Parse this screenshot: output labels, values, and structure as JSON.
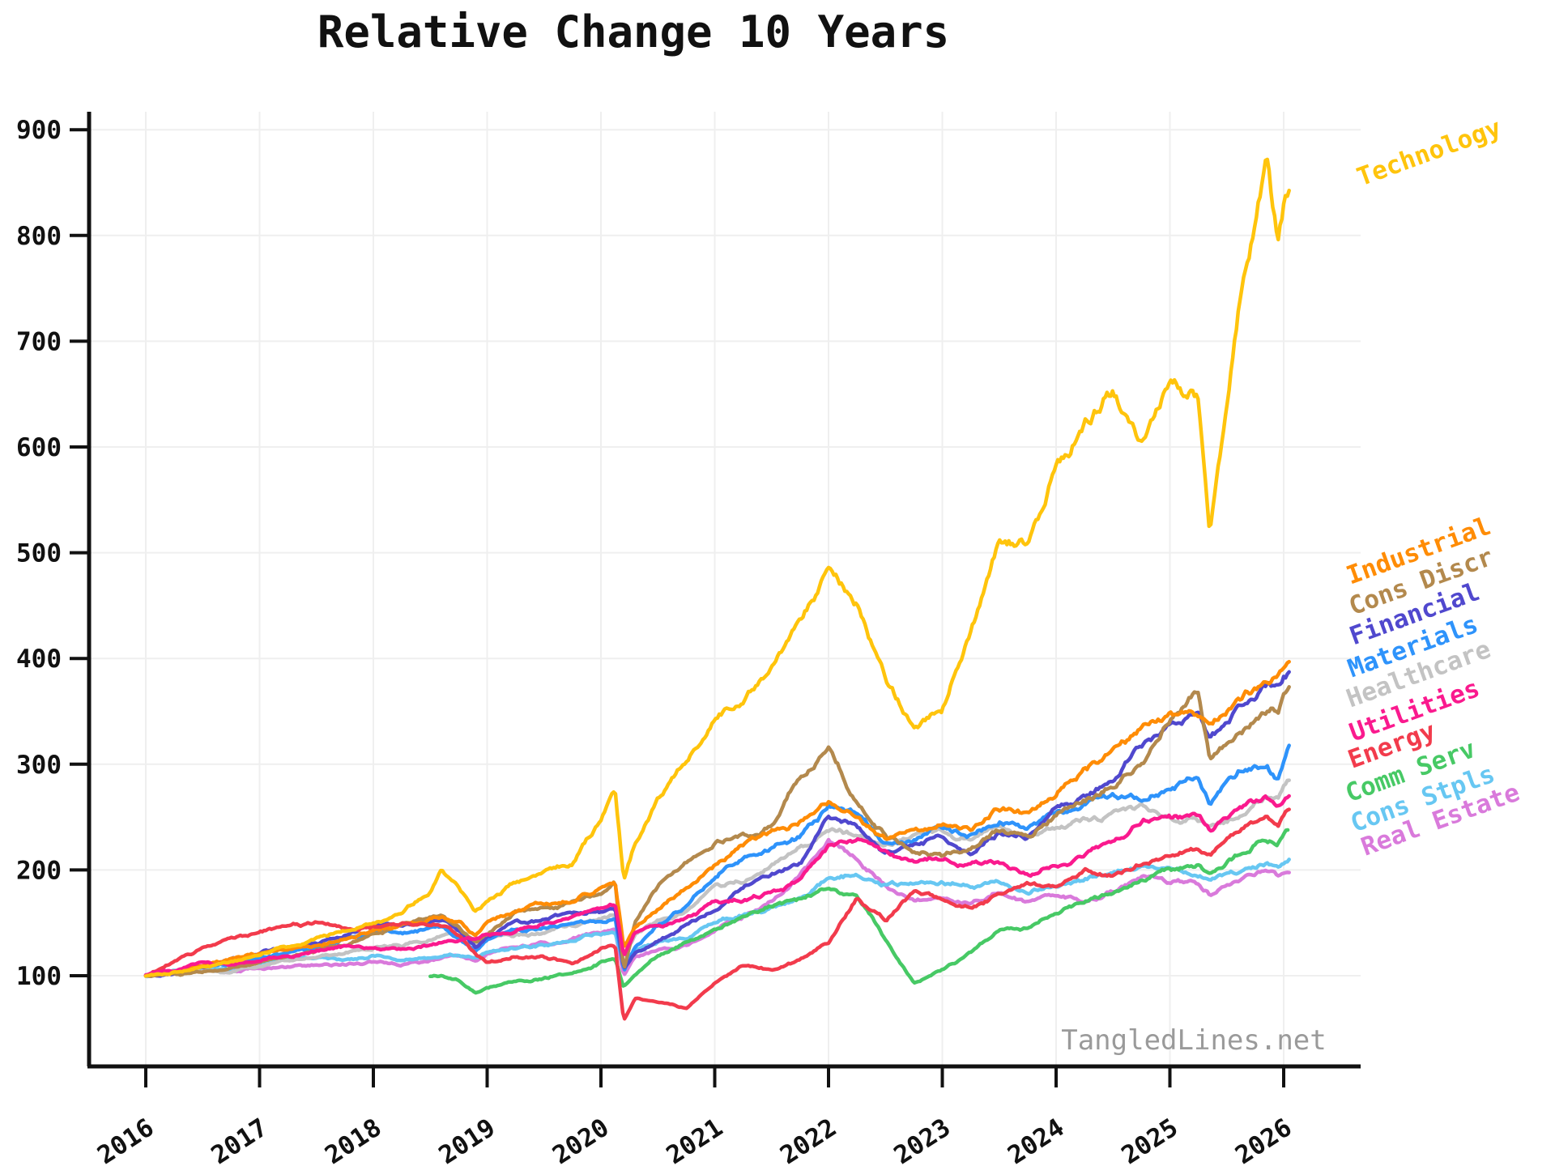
{
  "title": "Relative Change 10 Years",
  "watermark": "TangledLines.net",
  "chart_data": {
    "type": "line",
    "title": "Relative Change 10 Years",
    "xlabel": "",
    "ylabel": "",
    "grid": true,
    "legend_position": "right-margin-rotated-labels",
    "x_tick_labels": [
      "2016",
      "2017",
      "2018",
      "2019",
      "2020",
      "2021",
      "2022",
      "2023",
      "2024",
      "2025",
      "2026"
    ],
    "y_tick_labels": [
      "100",
      "200",
      "300",
      "400",
      "500",
      "600",
      "700",
      "800",
      "900"
    ],
    "xlim": [
      2015.5,
      2026.68
    ],
    "ylim": [
      40,
      915
    ],
    "x": [
      2016.0,
      2016.25,
      2016.5,
      2016.75,
      2017.0,
      2017.25,
      2017.5,
      2017.75,
      2018.0,
      2018.25,
      2018.5,
      2018.6,
      2018.75,
      2018.9,
      2019.0,
      2019.25,
      2019.5,
      2019.75,
      2020.0,
      2020.125,
      2020.2,
      2020.3,
      2020.5,
      2020.75,
      2021.0,
      2021.25,
      2021.5,
      2021.75,
      2022.0,
      2022.25,
      2022.5,
      2022.75,
      2023.0,
      2023.25,
      2023.5,
      2023.75,
      2024.0,
      2024.25,
      2024.5,
      2024.75,
      2025.0,
      2025.25,
      2025.35,
      2025.6,
      2025.85,
      2025.95,
      2026.0,
      2026.05
    ],
    "series": [
      {
        "name": "Technology",
        "color": "#FFC40C",
        "values": [
          100,
          104,
          109,
          113,
          120,
          127,
          134,
          142,
          150,
          160,
          178,
          203,
          185,
          163,
          172,
          192,
          200,
          210,
          252,
          280,
          195,
          230,
          268,
          305,
          340,
          358,
          392,
          432,
          478,
          450,
          375,
          335,
          350,
          430,
          510,
          505,
          570,
          620,
          655,
          605,
          675,
          655,
          515,
          720,
          860,
          790,
          820,
          830
        ]
      },
      {
        "name": "Industrial",
        "color": "#FF8C05",
        "values": [
          100,
          104,
          110,
          115,
          120,
          125,
          130,
          137,
          145,
          150,
          155,
          157,
          150,
          138,
          150,
          162,
          168,
          172,
          185,
          192,
          128,
          148,
          165,
          185,
          205,
          225,
          235,
          245,
          262,
          250,
          230,
          240,
          242,
          238,
          260,
          252,
          272,
          290,
          310,
          330,
          345,
          340,
          330,
          360,
          380,
          388,
          396,
          403
        ]
      },
      {
        "name": "Cons Discr",
        "color": "#B3894D",
        "values": [
          100,
          102,
          104,
          107,
          112,
          118,
          124,
          131,
          140,
          147,
          155,
          158,
          150,
          132,
          140,
          160,
          165,
          168,
          178,
          190,
          106,
          150,
          185,
          205,
          225,
          232,
          242,
          290,
          315,
          260,
          230,
          215,
          212,
          216,
          235,
          230,
          252,
          262,
          278,
          300,
          340,
          365,
          300,
          330,
          355,
          355,
          370,
          376
        ]
      },
      {
        "name": "Financial",
        "color": "#5048CE",
        "values": [
          100,
          103,
          109,
          116,
          122,
          125,
          130,
          138,
          148,
          146,
          148,
          150,
          142,
          126,
          138,
          148,
          152,
          158,
          162,
          165,
          105,
          122,
          132,
          148,
          162,
          185,
          195,
          205,
          255,
          240,
          215,
          225,
          230,
          215,
          235,
          230,
          255,
          270,
          285,
          315,
          330,
          345,
          320,
          350,
          370,
          365,
          375,
          381
        ]
      },
      {
        "name": "Materials",
        "color": "#2E93FB",
        "values": [
          100,
          104,
          110,
          114,
          120,
          124,
          128,
          134,
          142,
          140,
          144,
          146,
          136,
          122,
          134,
          142,
          144,
          148,
          152,
          155,
          105,
          128,
          148,
          165,
          195,
          215,
          225,
          230,
          258,
          250,
          225,
          230,
          240,
          232,
          245,
          238,
          252,
          262,
          270,
          268,
          278,
          285,
          262,
          288,
          295,
          280,
          300,
          314
        ]
      },
      {
        "name": "Healthcare",
        "color": "#C3C3C3",
        "values": [
          100,
          101,
          104,
          102,
          108,
          114,
          118,
          122,
          126,
          128,
          134,
          138,
          140,
          130,
          136,
          138,
          140,
          146,
          152,
          155,
          118,
          138,
          150,
          158,
          180,
          190,
          205,
          220,
          240,
          235,
          225,
          235,
          238,
          230,
          240,
          232,
          245,
          250,
          255,
          262,
          255,
          248,
          238,
          252,
          268,
          262,
          272,
          281
        ]
      },
      {
        "name": "Utilities",
        "color": "#FA1A8E",
        "values": [
          100,
          106,
          112,
          108,
          114,
          118,
          124,
          128,
          126,
          124,
          128,
          130,
          132,
          134,
          140,
          144,
          150,
          156,
          165,
          168,
          118,
          140,
          148,
          155,
          170,
          172,
          180,
          190,
          222,
          228,
          215,
          205,
          210,
          205,
          208,
          195,
          205,
          215,
          228,
          245,
          248,
          252,
          240,
          258,
          268,
          258,
          262,
          267
        ]
      },
      {
        "name": "Energy",
        "color": "#F23B4C",
        "values": [
          100,
          114,
          126,
          134,
          140,
          148,
          150,
          146,
          148,
          152,
          150,
          148,
          142,
          125,
          112,
          120,
          118,
          114,
          128,
          130,
          58,
          80,
          75,
          70,
          95,
          110,
          105,
          115,
          130,
          172,
          152,
          178,
          172,
          165,
          178,
          190,
          185,
          200,
          195,
          205,
          210,
          222,
          215,
          235,
          248,
          240,
          250,
          256
        ]
      },
      {
        "name": "Comm Serv",
        "color": "#47C965",
        "values": [
          null,
          null,
          null,
          null,
          null,
          null,
          null,
          null,
          null,
          null,
          100,
          101,
          96,
          84,
          88,
          96,
          98,
          102,
          112,
          115,
          88,
          102,
          118,
          130,
          142,
          155,
          165,
          172,
          185,
          175,
          135,
          95,
          105,
          120,
          140,
          145,
          160,
          170,
          178,
          190,
          200,
          205,
          195,
          215,
          232,
          228,
          238,
          243
        ]
      },
      {
        "name": "Cons Stpls",
        "color": "#67C7F2",
        "values": [
          100,
          104,
          108,
          106,
          110,
          114,
          116,
          112,
          118,
          114,
          116,
          118,
          120,
          118,
          122,
          126,
          130,
          134,
          140,
          142,
          112,
          126,
          132,
          138,
          152,
          158,
          165,
          172,
          190,
          195,
          185,
          182,
          185,
          183,
          188,
          180,
          185,
          190,
          196,
          200,
          198,
          195,
          190,
          200,
          208,
          204,
          208,
          212
        ]
      },
      {
        "name": "Real Estate",
        "color": "#D97ADB",
        "values": [
          100,
          103,
          107,
          104,
          106,
          108,
          110,
          112,
          114,
          110,
          114,
          116,
          118,
          114,
          120,
          126,
          130,
          134,
          140,
          142,
          100,
          118,
          122,
          128,
          140,
          155,
          170,
          195,
          225,
          210,
          185,
          170,
          175,
          168,
          180,
          170,
          178,
          172,
          180,
          192,
          190,
          188,
          178,
          192,
          198,
          194,
          196,
          197
        ]
      }
    ]
  }
}
